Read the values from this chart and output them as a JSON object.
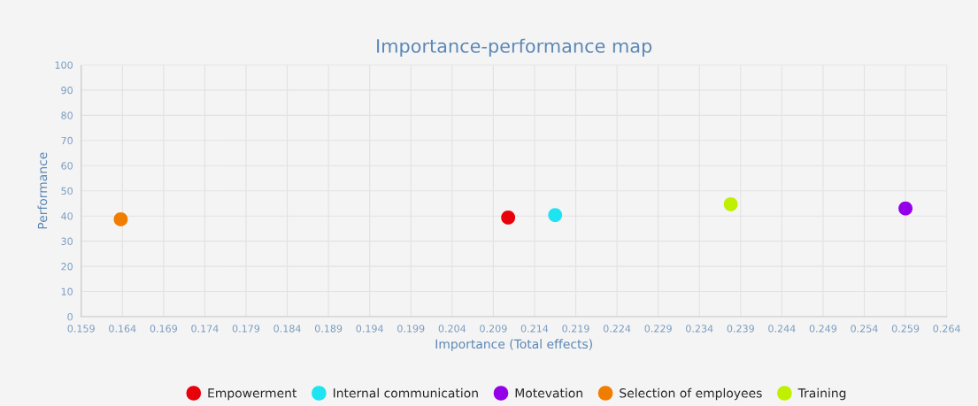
{
  "chart_data": {
    "type": "scatter",
    "title": "Importance-performance map",
    "xlabel": "Importance (Total effects)",
    "ylabel": "Performance",
    "xlim": [
      0.159,
      0.264
    ],
    "xticks": [
      0.159,
      0.164,
      0.169,
      0.174,
      0.179,
      0.184,
      0.189,
      0.194,
      0.199,
      0.204,
      0.209,
      0.214,
      0.219,
      0.224,
      0.229,
      0.234,
      0.239,
      0.244,
      0.249,
      0.254,
      0.259,
      0.264
    ],
    "ylim": [
      0,
      100
    ],
    "yticks": [
      0,
      10,
      20,
      30,
      40,
      50,
      60,
      70,
      80,
      90,
      100
    ],
    "grid": true,
    "legend": "bottom",
    "marker": "circle",
    "series": [
      {
        "name": "Empowerment",
        "color": "#e8000b",
        "x": [
          0.2108
        ],
        "values": [
          39.4
        ]
      },
      {
        "name": "Internal communication",
        "color": "#1ee3f0",
        "x": [
          0.2165
        ],
        "values": [
          40.4
        ]
      },
      {
        "name": "Motevation",
        "color": "#9400e8",
        "x": [
          0.259
        ],
        "values": [
          43.0
        ]
      },
      {
        "name": "Selection of employees",
        "color": "#f07d00",
        "x": [
          0.1638
        ],
        "values": [
          38.7
        ]
      },
      {
        "name": "Training",
        "color": "#c0f000",
        "x": [
          0.2378
        ],
        "values": [
          44.7
        ]
      }
    ]
  }
}
